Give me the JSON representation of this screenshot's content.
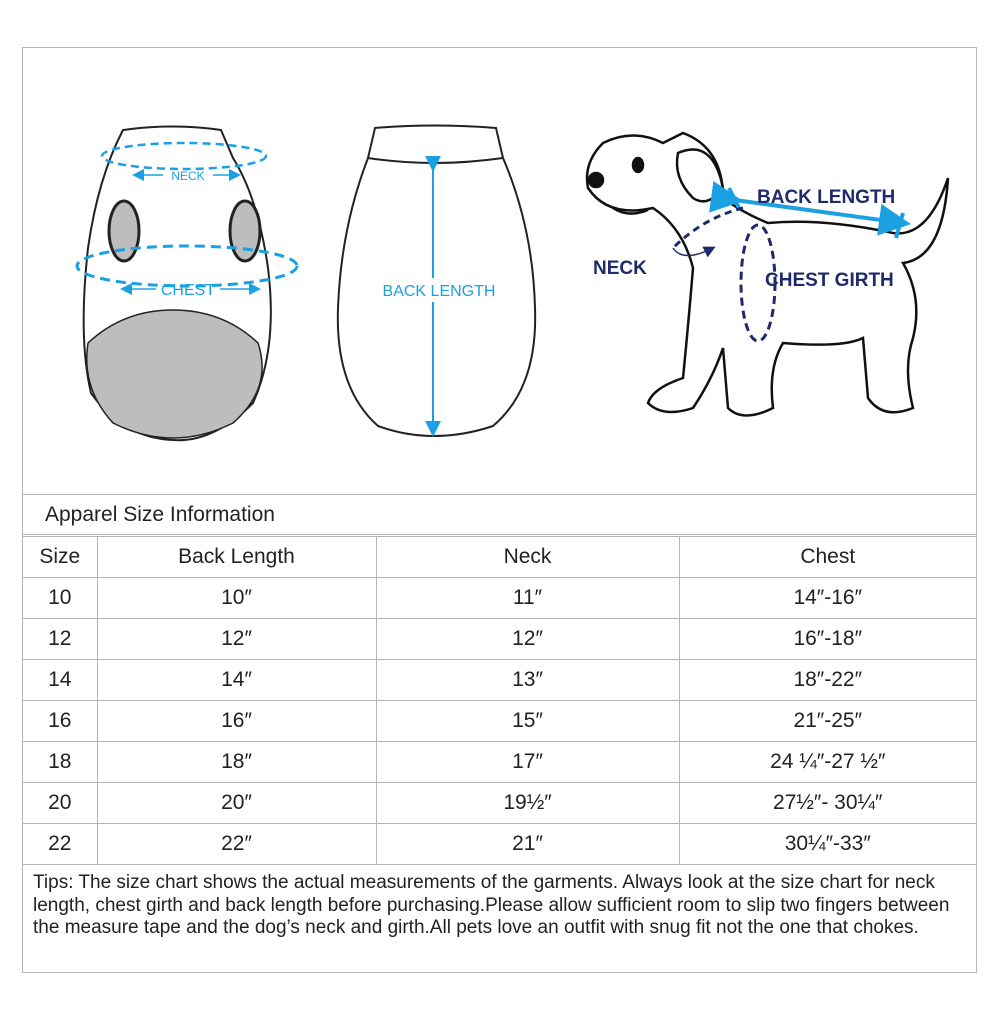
{
  "illustration": {
    "front_labels": {
      "neck": "NECK",
      "chest": "CHEST"
    },
    "back_label": "BACK LENGTH",
    "dog_labels": {
      "back_length": "BACK LENGTH",
      "neck": "NECK",
      "chest_girth": "CHEST GIRTH"
    },
    "colors": {
      "measure_blue": "#1ba1e2",
      "label_navy": "#1f2a6b",
      "fill_gray": "#bdbdbd"
    }
  },
  "table": {
    "title": "Apparel Size Information",
    "headers": [
      "Size",
      "Back Length",
      "Neck",
      "Chest"
    ],
    "rows": [
      [
        "10",
        "10″",
        "11″",
        "14″-16″"
      ],
      [
        "12",
        "12″",
        "12″",
        "16″-18″"
      ],
      [
        "14",
        "14″",
        "13″",
        "18″-22″"
      ],
      [
        "16",
        "16″",
        "15″",
        "21″-25″"
      ],
      [
        "18",
        "18″",
        "17″",
        "24 ¼″-27 ½″"
      ],
      [
        "20",
        "20″",
        "19½″",
        "27½″- 30¼″"
      ],
      [
        "22",
        "22″",
        "21″",
        "30¼″-33″"
      ]
    ]
  },
  "tips": "Tips:  The size chart shows the actual measurements of the  garments.  Always look at the size chart for neck length, chest girth and back length before purchasing.Please allow sufficient room to slip two fingers between the measure tape and the dog’s neck and girth.All pets love an outfit with snug fit not the one that chokes."
}
